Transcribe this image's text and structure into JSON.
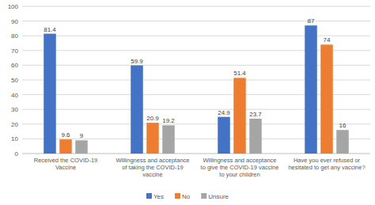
{
  "chart_data": {
    "type": "bar",
    "categories": [
      "Received the COVID-19 Vaccine",
      "Willingness and acceptance of taking the COVID-19 vaccine",
      "Willingness and acceptance to give the COVID-19 vaccine to your children",
      "Have you ever refused or hesitated to get any vaccine?"
    ],
    "series": [
      {
        "name": "Yes",
        "color": "#4472c4",
        "values": [
          81.4,
          59.9,
          24.9,
          87
        ]
      },
      {
        "name": "No",
        "color": "#ed7d31",
        "values": [
          9.6,
          20.9,
          51.4,
          74
        ]
      },
      {
        "name": "Unsure",
        "color": "#a5a5a5",
        "values": [
          9,
          19.2,
          23.7,
          16
        ]
      }
    ],
    "ylim": [
      0,
      100
    ],
    "yticks": [
      0,
      10,
      20,
      30,
      40,
      50,
      60,
      70,
      80,
      90,
      100
    ],
    "grid": true,
    "data_labels": true,
    "legend": "bottom"
  }
}
